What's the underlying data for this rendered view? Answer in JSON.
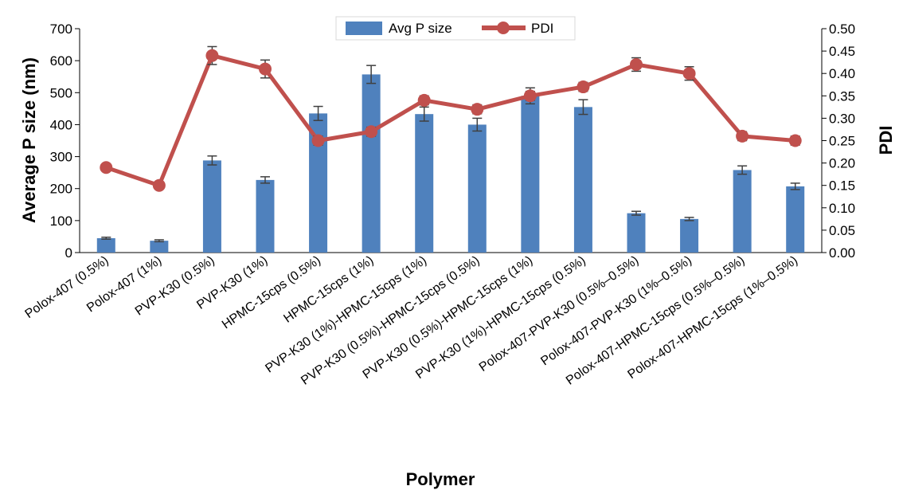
{
  "chart_data": {
    "type": "bar+line",
    "xlabel": "Polymer",
    "ylabel": "Average P size (nm)",
    "y2label": "PDI",
    "ylim": [
      0,
      700
    ],
    "y2lim": [
      0,
      0.5
    ],
    "yticks": [
      "0",
      "100",
      "200",
      "300",
      "400",
      "500",
      "600",
      "700"
    ],
    "y2ticks": [
      "0.00",
      "0.05",
      "0.10",
      "0.15",
      "0.20",
      "0.25",
      "0.30",
      "0.35",
      "0.40",
      "0.45",
      "0.50"
    ],
    "grid": false,
    "legend_position": "top-center",
    "categories": [
      "Polox-407 (0.5%)",
      "Polox-407 (1%)",
      "PVP-K30 (0.5%)",
      "PVP-K30 (1%)",
      "HPMC-15cps (0.5%)",
      "HPMC-15cps (1%)",
      "PVP-K30 (1%)-HPMC-15cps (1%)",
      "PVP-K30 (0.5%)-HPMC-15cps (0.5%)",
      "PVP-K30 (0.5%)-HPMC-15cps (1%)",
      "PVP-K30 (1%)-HPMC-15cps (0.5%)",
      "Polox-407-PVP-K30 (0.5%–0.5%)",
      "Polox-407-PVP-K30 (1%–0.5%)",
      "Polox-407-HPMC-15cps (0.5%–0.5%)",
      "Polox-407-HPMC-15cps (1%–0.5%)"
    ],
    "series": [
      {
        "name": "Avg P size",
        "type": "bar",
        "axis": "left",
        "color": "#4f81bd",
        "values": [
          45,
          37,
          288,
          227,
          435,
          557,
          433,
          400,
          490,
          455,
          123,
          105,
          258,
          207
        ],
        "errors": [
          3,
          3,
          14,
          10,
          22,
          28,
          22,
          20,
          25,
          23,
          6,
          5,
          13,
          10
        ]
      },
      {
        "name": "PDI",
        "type": "line",
        "axis": "right",
        "color": "#c0504d",
        "values": [
          0.19,
          0.15,
          0.44,
          0.41,
          0.25,
          0.27,
          0.34,
          0.32,
          0.35,
          0.37,
          0.42,
          0.4,
          0.26,
          0.25
        ],
        "errors": [
          0,
          0,
          0.02,
          0.02,
          0.01,
          0.01,
          0.01,
          0.01,
          0.01,
          0.01,
          0.015,
          0.015,
          0.01,
          0.01
        ]
      }
    ]
  }
}
